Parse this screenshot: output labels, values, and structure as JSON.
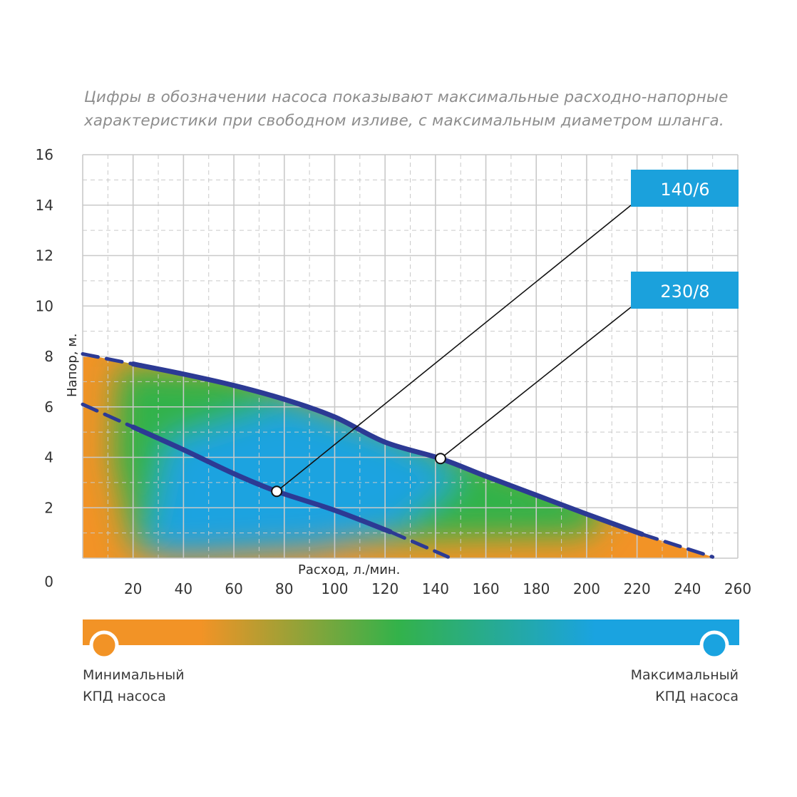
{
  "note": {
    "line1": "Цифры в обозначении насоса показывают максимальные расходно-напорные",
    "line2": "характеристики при свободном изливе, с максимальным диаметром шланга."
  },
  "colors": {
    "orange": "#f29326",
    "green": "#33b24a",
    "blue": "#1aa3e0",
    "curve": "#2c3a94",
    "tag_bg": "#1ba1dc",
    "grid": "#c9c9c9"
  },
  "legend": {
    "min_line1": "Минимальный",
    "min_line2": "КПД насоса",
    "max_line1": "Максимальный",
    "max_line2": "КПД насоса"
  },
  "chart_data": {
    "type": "line",
    "xlabel": "Расход, л./мин.",
    "ylabel": "Напор, м.",
    "xlim": [
      0,
      260
    ],
    "ylim": [
      0,
      16
    ],
    "x_ticks": [
      "20",
      "40",
      "60",
      "80",
      "100",
      "120",
      "140",
      "160",
      "180",
      "200",
      "220",
      "240",
      "260"
    ],
    "y_ticks": [
      "0",
      "2",
      "4",
      "6",
      "8",
      "10",
      "12",
      "14",
      "16"
    ],
    "grid": true,
    "series": [
      {
        "name": "140/6",
        "points": [
          [
            0,
            6.1
          ],
          [
            20,
            5.2
          ],
          [
            40,
            4.3
          ],
          [
            60,
            3.35
          ],
          [
            77,
            2.65
          ],
          [
            100,
            1.9
          ],
          [
            122,
            1.05
          ],
          [
            145,
            0.05
          ]
        ],
        "marker": [
          77,
          2.65
        ]
      },
      {
        "name": "230/8",
        "points": [
          [
            0,
            8.1
          ],
          [
            20,
            7.7
          ],
          [
            40,
            7.3
          ],
          [
            60,
            6.85
          ],
          [
            80,
            6.3
          ],
          [
            100,
            5.6
          ],
          [
            120,
            4.6
          ],
          [
            142,
            3.95
          ],
          [
            160,
            3.25
          ],
          [
            180,
            2.5
          ],
          [
            200,
            1.75
          ],
          [
            222,
            0.95
          ],
          [
            250,
            0.05
          ]
        ],
        "marker": [
          142,
          3.95
        ]
      }
    ]
  }
}
